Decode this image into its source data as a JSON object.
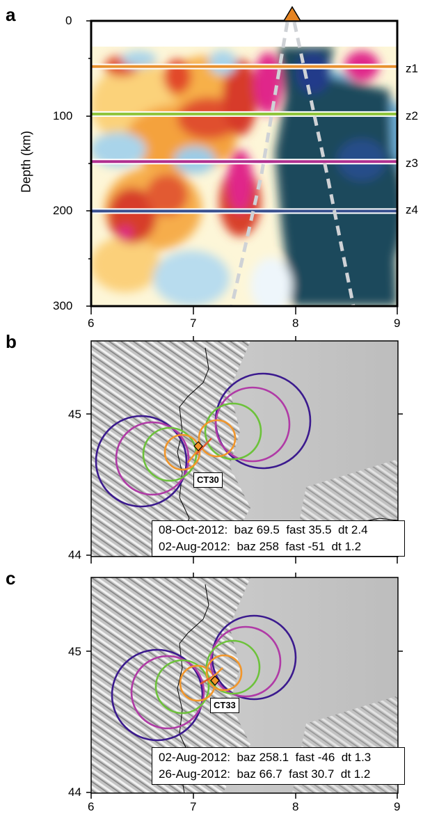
{
  "panel_a": {
    "letter": "a",
    "ylabel": "Depth (km)",
    "y_ticks": [
      "0",
      "100",
      "200",
      "300"
    ],
    "x_ticks": [
      "6",
      "7",
      "8",
      "9"
    ],
    "layer_lines": [
      {
        "label": "z1",
        "depth_km": 48,
        "color": "#e8902e"
      },
      {
        "label": "z2",
        "depth_km": 98,
        "color": "#8fc43a"
      },
      {
        "label": "z3",
        "depth_km": 148,
        "color": "#b02f8f"
      },
      {
        "label": "z4",
        "depth_km": 200,
        "color": "#39508f"
      }
    ],
    "station_marker_color": "#e58422"
  },
  "panel_b": {
    "letter": "b",
    "y_ticks": [
      "45",
      "44"
    ],
    "x_ticks": [
      "6",
      "7",
      "8",
      "9"
    ],
    "station": "CT30",
    "events": [
      "08-Oct-2012:  baz 69.5  fast 35.5  dt 2.4",
      "02-Aug-2012:  baz 258  fast -51  dt 1.2"
    ]
  },
  "panel_c": {
    "letter": "c",
    "y_ticks": [
      "45",
      "44"
    ],
    "x_ticks": [
      "6",
      "7",
      "8",
      "9"
    ],
    "station": "CT33",
    "events": [
      "02-Aug-2012:  baz 258.1  fast -46  dt 1.3",
      "26-Aug-2012:  baz 66.7  fast 30.7  dt 1.2"
    ]
  },
  "colors": {
    "deep_blue": "#1f4a5c",
    "magenta": "#e0278a",
    "red": "#d9402a",
    "orange": "#f39a2e",
    "yellow": "#fbe89a",
    "light_blue": "#a7d3ea",
    "ring_purple": "#3b1a8e",
    "ring_magenta": "#b03aa6",
    "ring_green": "#6cc23a",
    "ring_orange": "#f2962a"
  }
}
